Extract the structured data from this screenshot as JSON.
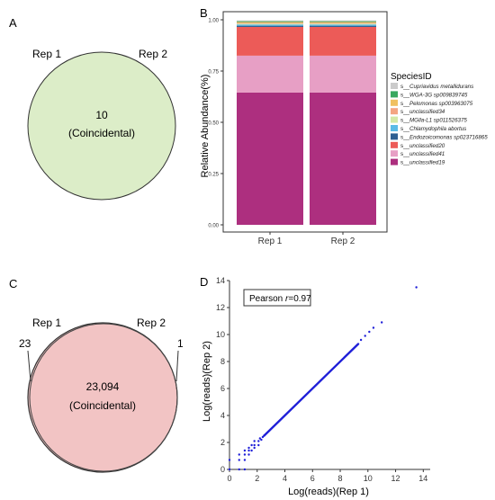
{
  "panels": {
    "A": {
      "letter": "A",
      "left_label": "Rep 1",
      "right_label": "Rep 2",
      "count": "10",
      "caption": "(Coincidental)",
      "fill": "#dcedc8"
    },
    "B": {
      "letter": "B"
    },
    "C": {
      "letter": "C",
      "left_label": "Rep 1",
      "right_label": "Rep 2",
      "left_only": "23",
      "right_only": "1",
      "count": "23,094",
      "caption": "(Coincidental)",
      "fill": "#f2c4c4"
    },
    "D": {
      "letter": "D",
      "annotation_prefix": "Pearson ",
      "annotation_r": "r",
      "annotation_value": "=0.97"
    }
  },
  "chart_data": [
    {
      "type": "bar",
      "stacked": true,
      "panel": "B",
      "categories": [
        "Rep 1",
        "Rep 2"
      ],
      "ylabel": "Relative Abundance(%)",
      "ylim": [
        0,
        1.0
      ],
      "yticks": [
        "0.00",
        "0.25",
        "0.50",
        "0.75",
        "1.00"
      ],
      "legend_title": "SpeciesID",
      "legend_position": "right",
      "series": [
        {
          "name": "s__unclassified19",
          "color": "#ad2f7f",
          "values": [
            0.645,
            0.645
          ]
        },
        {
          "name": "s__unclassified41",
          "color": "#e79fc5",
          "values": [
            0.18,
            0.18
          ]
        },
        {
          "name": "s__unclassified20",
          "color": "#ec5b58",
          "values": [
            0.14,
            0.14
          ]
        },
        {
          "name": "s__Endozoicomonas sp023716865",
          "color": "#2d5f92",
          "values": [
            0.006,
            0.006
          ]
        },
        {
          "name": "s__Chlamydophila abortus",
          "color": "#5bbbe6",
          "values": [
            0.006,
            0.006
          ]
        },
        {
          "name": "s__MGlla-L1 sp011526375",
          "color": "#d4e8a6",
          "values": [
            0.004,
            0.004
          ]
        },
        {
          "name": "s__unclassified34",
          "color": "#f4a582",
          "values": [
            0.004,
            0.004
          ]
        },
        {
          "name": "s__Pelomonas sp003963075",
          "color": "#f0c060",
          "values": [
            0.004,
            0.004
          ]
        },
        {
          "name": "s__WGA-3G sp009839745",
          "color": "#3aa860",
          "values": [
            0.004,
            0.004
          ]
        },
        {
          "name": "s__Cupriavidus metallidurans",
          "color": "#cbcbcb",
          "values": [
            0.004,
            0.004
          ]
        }
      ]
    },
    {
      "type": "scatter",
      "panel": "D",
      "xlabel": "Log(reads)(Rep 1)",
      "ylabel": "Log(reads)(Rep 2)",
      "xlim": [
        0,
        14.5
      ],
      "ylim": [
        0,
        14
      ],
      "xticks": [
        0,
        2,
        4,
        6,
        8,
        10,
        12,
        14
      ],
      "yticks": [
        0,
        2,
        4,
        6,
        8,
        10,
        12,
        14
      ],
      "color": "#1f1fd8",
      "points": [
        [
          0,
          0
        ],
        [
          0,
          0.7
        ],
        [
          0.7,
          0
        ],
        [
          0.7,
          0.7
        ],
        [
          1.1,
          0
        ],
        [
          1.1,
          0.7
        ],
        [
          1.1,
          1.1
        ],
        [
          1.1,
          1.4
        ],
        [
          0.7,
          1.1
        ],
        [
          1.4,
          1.1
        ],
        [
          1.4,
          1.4
        ],
        [
          1.4,
          1.6
        ],
        [
          1.6,
          1.4
        ],
        [
          1.6,
          1.8
        ],
        [
          1.8,
          1.6
        ],
        [
          1.8,
          1.8
        ],
        [
          1.8,
          2.1
        ],
        [
          2.1,
          1.8
        ],
        [
          2.1,
          2.1
        ],
        [
          2.2,
          2.3
        ],
        [
          2.3,
          2.2
        ],
        [
          2.4,
          2.4
        ],
        [
          2.5,
          2.5
        ],
        [
          9.5,
          9.6
        ],
        [
          9.8,
          9.9
        ],
        [
          10.1,
          10.2
        ],
        [
          10.4,
          10.5
        ],
        [
          11.0,
          10.9
        ],
        [
          13.5,
          13.5
        ]
      ],
      "dense_band": {
        "from": 2.5,
        "to": 9.3
      }
    }
  ]
}
